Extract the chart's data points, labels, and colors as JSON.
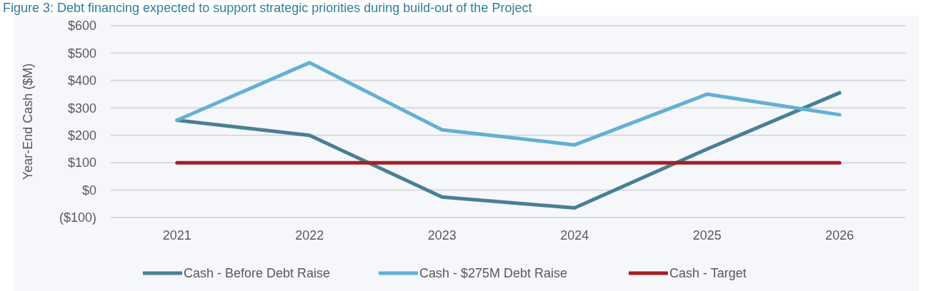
{
  "chart_data": {
    "type": "line",
    "title": "Figure 3: Debt financing expected to support strategic priorities during build-out of the Project",
    "ylabel": "Year-End Cash ($M)",
    "categories": [
      "2021",
      "2022",
      "2023",
      "2024",
      "2025",
      "2026"
    ],
    "series": [
      {
        "name": "Cash - Before Debt Raise",
        "color": "#4a7f93",
        "values": [
          255,
          200,
          -25,
          -65,
          150,
          355
        ]
      },
      {
        "name": "Cash - $275M Debt Raise",
        "color": "#63b0d3",
        "values": [
          255,
          465,
          220,
          165,
          350,
          275
        ]
      },
      {
        "name": "Cash - Target",
        "color": "#a71e22",
        "values": [
          100,
          100,
          100,
          100,
          100,
          100
        ]
      }
    ],
    "ylim": [
      -100,
      600
    ],
    "yticks": [
      {
        "value": -100,
        "label": "($100)"
      },
      {
        "value": 0,
        "label": "$0"
      },
      {
        "value": 100,
        "label": "$100"
      },
      {
        "value": 200,
        "label": "$200"
      },
      {
        "value": 300,
        "label": "$300"
      },
      {
        "value": 400,
        "label": "$400"
      },
      {
        "value": 500,
        "label": "$500"
      },
      {
        "value": 600,
        "label": "$600"
      }
    ],
    "grid": "y",
    "legend": "bottom",
    "marker": "none",
    "line_style": "solid"
  }
}
